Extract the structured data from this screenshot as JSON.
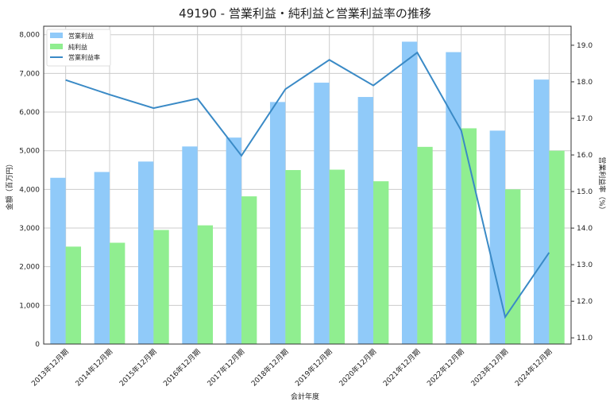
{
  "chart_data": {
    "type": "bar",
    "title": "49190 - 営業利益・純利益と営業利益率の推移",
    "xlabel": "会計年度",
    "ylabel": "金額（百万円）",
    "y2label": "営業利益率（%）",
    "categories": [
      "2013年12月期",
      "2014年12月期",
      "2015年12月期",
      "2016年12月期",
      "2017年12月期",
      "2018年12月期",
      "2019年12月期",
      "2020年12月期",
      "2021年12月期",
      "2022年12月期",
      "2023年12月期",
      "2024年12月期"
    ],
    "series": [
      {
        "name": "営業利益",
        "type": "bar",
        "axis": "left",
        "color": "#90caf9",
        "values": [
          4300,
          4450,
          4720,
          5110,
          5340,
          6260,
          6760,
          6390,
          7820,
          7550,
          5520,
          6840
        ]
      },
      {
        "name": "純利益",
        "type": "bar",
        "axis": "left",
        "color": "#90ee90",
        "values": [
          2520,
          2620,
          2950,
          3070,
          3820,
          4500,
          4510,
          4210,
          5100,
          5580,
          4000,
          5000
        ]
      },
      {
        "name": "営業利益率",
        "type": "line",
        "axis": "right",
        "color": "#3a8ac6",
        "values": [
          18.05,
          17.65,
          17.28,
          17.54,
          15.98,
          17.8,
          18.6,
          17.9,
          18.8,
          16.67,
          11.57,
          13.33
        ]
      }
    ],
    "ylim": [
      0,
      8220
    ],
    "y2lim": [
      10.83,
      19.52
    ],
    "yticks": [
      "0",
      "1,000",
      "2,000",
      "3,000",
      "4,000",
      "5,000",
      "6,000",
      "7,000",
      "8,000"
    ],
    "y2ticks": [
      "11.0",
      "12.0",
      "13.0",
      "14.0",
      "15.0",
      "16.0",
      "17.0",
      "18.0",
      "19.0"
    ],
    "grid": true,
    "legend": "top-left"
  }
}
